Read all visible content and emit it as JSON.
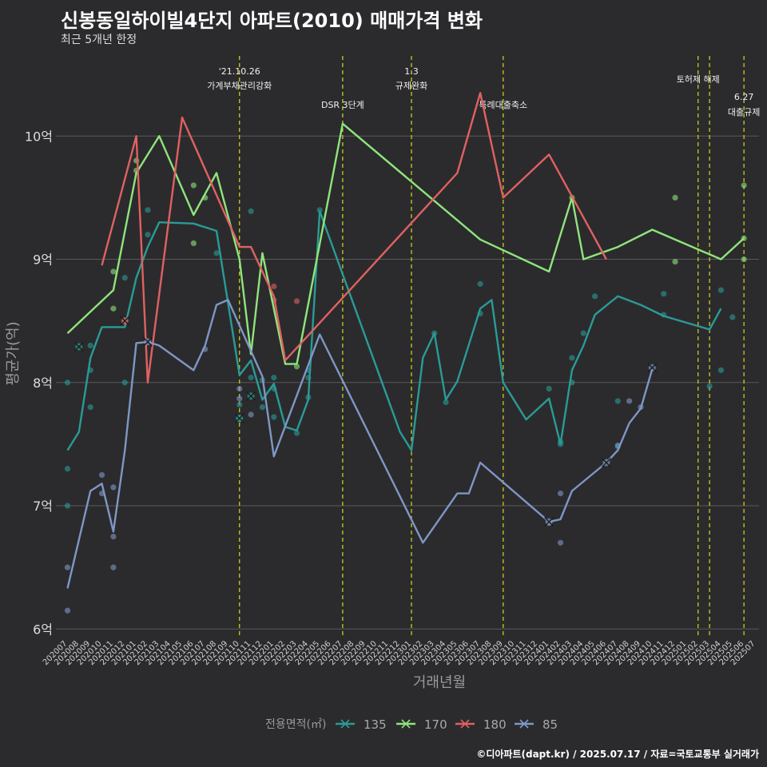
{
  "title": "신봉동일하이빌4단지 아파트(2010) 매매가격 변화",
  "subtitle": "최근 5개년 한정",
  "caption": "©디아파트(dapt.kr) / 2025.07.17 / 자료=국토교통부 실거래가",
  "chart_data": {
    "type": "line",
    "xlabel": "거래년월",
    "ylabel": "평균가(억)",
    "ylim": [
      5.95,
      10.65
    ],
    "yticks": [
      6,
      7,
      8,
      9,
      10
    ],
    "ytick_labels": [
      "6억",
      "7억",
      "8억",
      "9억",
      "10억"
    ],
    "grid": true,
    "legend_position": "bottom",
    "legend_title": "전용면적(㎡)",
    "categories": [
      "202007",
      "202008",
      "202009",
      "202010",
      "202011",
      "202012",
      "202101",
      "202102",
      "202103",
      "202104",
      "202105",
      "202106",
      "202107",
      "202108",
      "202109",
      "202110",
      "202111",
      "202112",
      "202201",
      "202202",
      "202203",
      "202204",
      "202205",
      "202206",
      "202207",
      "202208",
      "202209",
      "202210",
      "202211",
      "202212",
      "202301",
      "202302",
      "202303",
      "202304",
      "202305",
      "202306",
      "202307",
      "202308",
      "202309",
      "202310",
      "202311",
      "202312",
      "202401",
      "202402",
      "202403",
      "202404",
      "202405",
      "202406",
      "202407",
      "202408",
      "202409",
      "202410",
      "202411",
      "202412",
      "202501",
      "202502",
      "202503",
      "202504",
      "202505",
      "202506",
      "202507"
    ],
    "annotations": [
      {
        "x": "202110",
        "lines": [
          "'21.10.26",
          "가계부채관리강화"
        ],
        "row": 1
      },
      {
        "x": "202207",
        "lines": [
          "DSR 3단계"
        ],
        "row": 3
      },
      {
        "x": "202301",
        "lines": [
          "1.3",
          "규제완화"
        ],
        "row": 1
      },
      {
        "x": "202309",
        "lines": [
          "특례대출축소"
        ],
        "row": 3
      },
      {
        "x": "202502",
        "lines": [
          "토허제 해제"
        ],
        "row": 2
      },
      {
        "x": "202503",
        "lines": [],
        "row": 2
      },
      {
        "x": "202506",
        "lines": [
          "6.27",
          "대출규제"
        ],
        "row": 4
      }
    ],
    "series": [
      {
        "name": "135",
        "color": "#2a9b96",
        "values": [
          [
            0,
            7.45
          ],
          [
            1,
            7.6
          ],
          [
            2,
            8.2
          ],
          [
            3,
            8.45
          ],
          [
            4,
            8.45
          ],
          [
            5,
            8.45
          ],
          [
            6,
            8.85
          ],
          [
            7,
            9.1
          ],
          [
            8,
            9.3
          ],
          [
            11,
            9.29
          ],
          [
            13,
            9.23
          ],
          [
            15,
            8.06
          ],
          [
            16,
            8.18
          ],
          [
            17,
            7.86
          ],
          [
            18,
            7.99
          ],
          [
            19,
            7.64
          ],
          [
            20,
            7.61
          ],
          [
            21,
            7.86
          ],
          [
            22,
            9.39
          ],
          [
            29,
            7.6
          ],
          [
            30,
            7.45
          ],
          [
            31,
            8.2
          ],
          [
            32,
            8.4
          ],
          [
            33,
            7.86
          ],
          [
            34,
            8.01
          ],
          [
            36,
            8.6
          ],
          [
            37,
            8.67
          ],
          [
            38,
            8.0
          ],
          [
            40,
            7.7
          ],
          [
            42,
            7.87
          ],
          [
            43,
            7.5
          ],
          [
            44,
            8.1
          ],
          [
            45,
            8.3
          ],
          [
            46,
            8.55
          ],
          [
            48,
            8.7
          ],
          [
            50,
            8.63
          ],
          [
            52,
            8.54
          ],
          [
            56,
            8.43
          ],
          [
            57,
            8.6
          ]
        ],
        "points": [
          [
            0,
            8.0
          ],
          [
            0,
            7.3
          ],
          [
            0,
            7.0
          ],
          [
            2,
            8.1
          ],
          [
            2,
            7.8
          ],
          [
            2,
            8.3
          ],
          [
            5,
            8.85
          ],
          [
            5,
            8.0
          ],
          [
            7,
            9.2
          ],
          [
            7,
            9.4
          ],
          [
            13,
            9.05
          ],
          [
            15,
            7.82
          ],
          [
            15,
            7.7
          ],
          [
            16,
            8.04
          ],
          [
            16,
            9.39
          ],
          [
            17,
            8.02
          ],
          [
            17,
            7.8
          ],
          [
            18,
            8.04
          ],
          [
            18,
            7.95
          ],
          [
            18,
            7.72
          ],
          [
            20,
            7.59
          ],
          [
            21,
            8.04
          ],
          [
            21,
            8.1
          ],
          [
            21,
            7.88
          ],
          [
            22,
            9.4
          ],
          [
            32,
            8.4
          ],
          [
            33,
            7.84
          ],
          [
            36,
            8.8
          ],
          [
            36,
            8.56
          ],
          [
            42,
            7.95
          ],
          [
            43,
            7.5
          ],
          [
            43,
            7.52
          ],
          [
            44,
            8.2
          ],
          [
            44,
            8.0
          ],
          [
            45,
            8.4
          ],
          [
            46,
            8.7
          ],
          [
            48,
            7.48
          ],
          [
            48,
            7.85
          ],
          [
            52,
            8.72
          ],
          [
            52,
            8.55
          ],
          [
            56,
            7.97
          ],
          [
            57,
            8.75
          ],
          [
            57,
            8.1
          ],
          [
            58,
            8.53
          ]
        ]
      },
      {
        "name": "170",
        "color": "#8fe57c",
        "values": [
          [
            0,
            8.4
          ],
          [
            4,
            8.75
          ],
          [
            6,
            9.7
          ],
          [
            8,
            10.0
          ],
          [
            11,
            9.36
          ],
          [
            13,
            9.7
          ],
          [
            15,
            9.0
          ],
          [
            16,
            8.23
          ],
          [
            17,
            9.05
          ],
          [
            19,
            8.15
          ],
          [
            20,
            8.15
          ],
          [
            24,
            10.1
          ],
          [
            36,
            9.16
          ],
          [
            42,
            8.9
          ],
          [
            44,
            9.5
          ],
          [
            45,
            9.0
          ],
          [
            48,
            9.1
          ],
          [
            51,
            9.24
          ],
          [
            57,
            9.0
          ],
          [
            59,
            9.17
          ]
        ],
        "points": [
          [
            4,
            8.6
          ],
          [
            4,
            8.9
          ],
          [
            6,
            9.8
          ],
          [
            6,
            9.72
          ],
          [
            11,
            9.6
          ],
          [
            11,
            9.13
          ],
          [
            12,
            9.5
          ],
          [
            20,
            8.13
          ],
          [
            44,
            9.5
          ],
          [
            53,
            9.5
          ],
          [
            53,
            8.98
          ],
          [
            59,
            9.6
          ],
          [
            59,
            9.0
          ],
          [
            59,
            9.17
          ]
        ]
      },
      {
        "name": "180",
        "color": "#e06161",
        "values": [
          [
            3,
            8.95
          ],
          [
            6,
            10.0
          ],
          [
            7,
            8.0
          ],
          [
            10,
            10.15
          ],
          [
            15,
            9.1
          ],
          [
            16,
            9.1
          ],
          [
            18,
            8.7
          ],
          [
            19,
            8.18
          ],
          [
            34,
            9.7
          ],
          [
            36,
            10.35
          ],
          [
            38,
            9.5
          ],
          [
            42,
            9.85
          ],
          [
            47,
            9.0
          ]
        ],
        "points": [
          [
            5,
            8.5
          ],
          [
            18,
            8.78
          ],
          [
            18,
            8.67
          ],
          [
            20,
            8.66
          ]
        ]
      },
      {
        "name": "85",
        "color": "#7e97c6",
        "values": [
          [
            0,
            6.33
          ],
          [
            2,
            7.12
          ],
          [
            3,
            7.18
          ],
          [
            4,
            6.79
          ],
          [
            5,
            7.45
          ],
          [
            6,
            8.32
          ],
          [
            7,
            8.33
          ],
          [
            8,
            8.3
          ],
          [
            11,
            8.1
          ],
          [
            12,
            8.3
          ],
          [
            13,
            8.63
          ],
          [
            14,
            8.67
          ],
          [
            17,
            8.05
          ],
          [
            18,
            7.4
          ],
          [
            22,
            8.39
          ],
          [
            31,
            6.7
          ],
          [
            34,
            7.1
          ],
          [
            35,
            7.1
          ],
          [
            36,
            7.35
          ],
          [
            42,
            6.87
          ],
          [
            43,
            6.89
          ],
          [
            44,
            7.12
          ],
          [
            47,
            7.35
          ],
          [
            48,
            7.45
          ],
          [
            49,
            7.67
          ],
          [
            50,
            7.79
          ],
          [
            51,
            8.11
          ]
        ],
        "points": [
          [
            0,
            6.5
          ],
          [
            0,
            6.15
          ],
          [
            3,
            7.25
          ],
          [
            3,
            7.1
          ],
          [
            4,
            7.15
          ],
          [
            4,
            6.75
          ],
          [
            4,
            6.5
          ],
          [
            12,
            8.27
          ],
          [
            15,
            7.95
          ],
          [
            15,
            7.87
          ],
          [
            16,
            7.74
          ],
          [
            42,
            6.86
          ],
          [
            43,
            7.1
          ],
          [
            43,
            6.7
          ],
          [
            48,
            7.49
          ],
          [
            49,
            7.85
          ],
          [
            50,
            7.8
          ]
        ]
      }
    ],
    "x_marks": [
      {
        "series": "135",
        "x": 1,
        "y": 8.29
      },
      {
        "series": "135",
        "x": 15,
        "y": 7.71
      },
      {
        "series": "135",
        "x": 16,
        "y": 7.89
      },
      {
        "series": "180",
        "x": 5,
        "y": 8.5
      },
      {
        "series": "85",
        "x": 7,
        "y": 8.33
      },
      {
        "series": "85",
        "x": 42,
        "y": 6.87
      },
      {
        "series": "85",
        "x": 47,
        "y": 7.35
      },
      {
        "series": "85",
        "x": 51,
        "y": 8.12
      }
    ]
  }
}
